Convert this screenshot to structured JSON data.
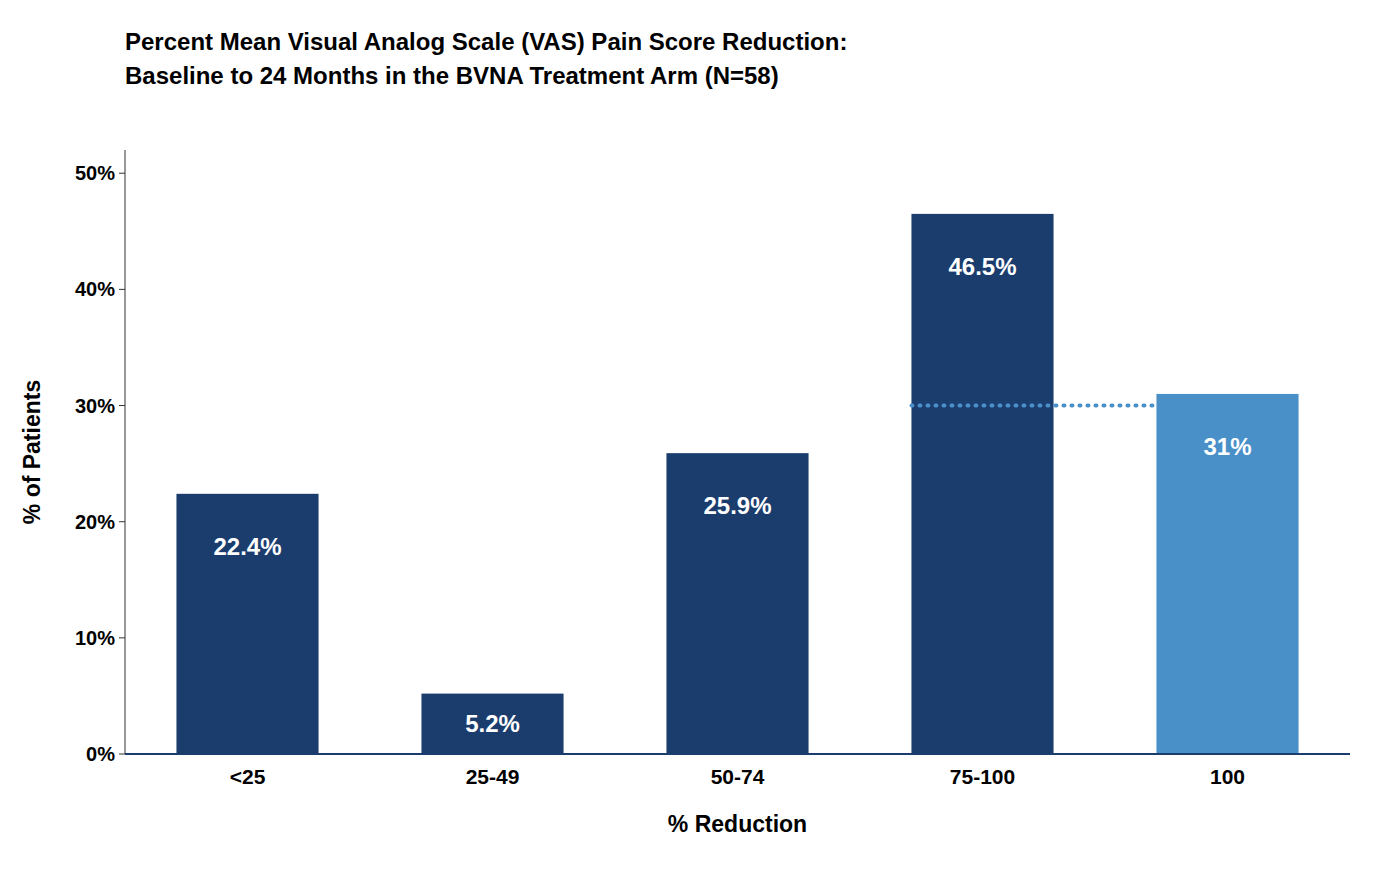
{
  "chart_data": {
    "type": "bar",
    "title": "Percent Mean Visual Analog Scale (VAS) Pain Score Reduction:",
    "subtitle": "Baseline to 24 Months in the BVNA Treatment Arm (N=58)",
    "xlabel": "% Reduction",
    "ylabel": "% of Patients",
    "categories": [
      "<25",
      "25-49",
      "50-74",
      "75-100",
      "100"
    ],
    "values": [
      22.4,
      5.2,
      25.9,
      46.5,
      31.0
    ],
    "value_labels": [
      "22.4%",
      "5.2%",
      "25.9%",
      "46.5%",
      "31%"
    ],
    "data_labels": true,
    "colors": [
      "#1b3d6e",
      "#1b3d6e",
      "#1b3d6e",
      "#1b3d6e",
      "#4a90c8"
    ],
    "ylim": [
      0,
      52
    ],
    "yticks": [
      {
        "value": 0,
        "label": "0%"
      },
      {
        "value": 10,
        "label": "10%"
      },
      {
        "value": 20,
        "label": "20%"
      },
      {
        "value": 30,
        "label": "30%"
      },
      {
        "value": 40,
        "label": "40%"
      },
      {
        "value": 50,
        "label": "50%"
      }
    ],
    "grid": false,
    "reference_lines": [
      {
        "value": 30,
        "color": "#4a90c8",
        "from": "75-100",
        "to": "100"
      }
    ]
  }
}
